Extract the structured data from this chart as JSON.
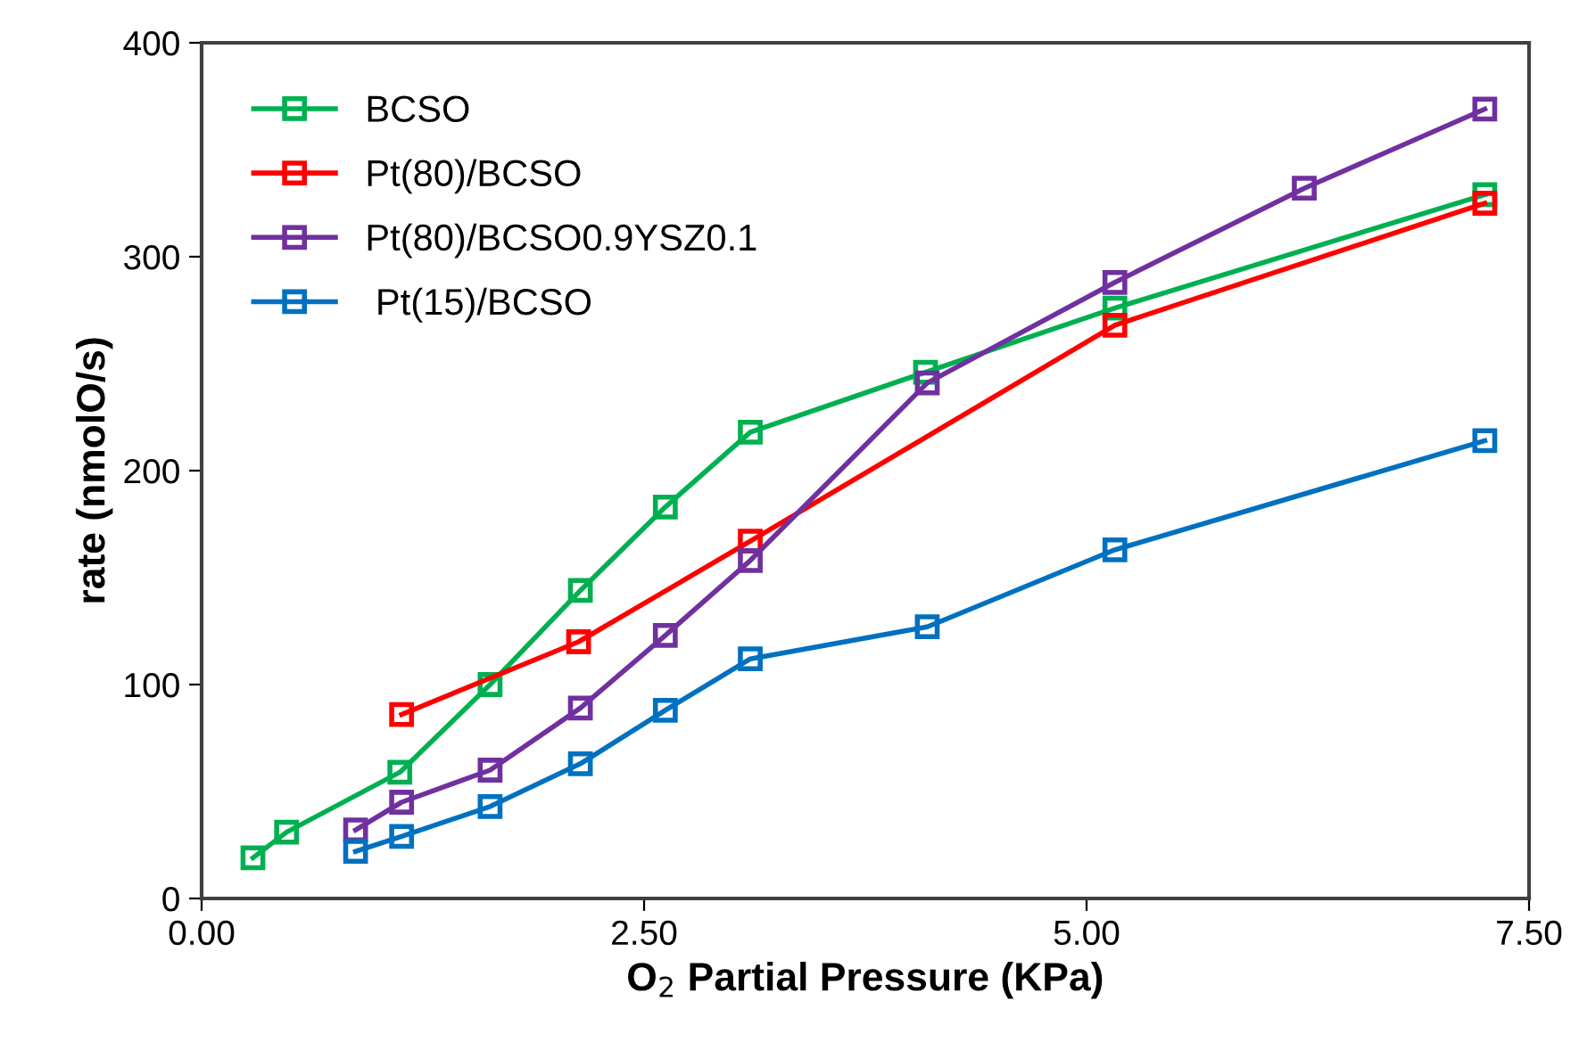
{
  "chart_data": {
    "type": "line",
    "xlabel": "O$_{2}$ Partial Pressure (KPa)",
    "ylabel": "rate (nmolO/s)",
    "xlim": [
      0,
      7.5
    ],
    "xticks": [
      {
        "value": 0,
        "label": "0.00"
      },
      {
        "value": 2.5,
        "label": "2.50"
      },
      {
        "value": 5,
        "label": "5.00"
      },
      {
        "value": 7.5,
        "label": "7.50"
      }
    ],
    "ylim": [
      0,
      400
    ],
    "yticks": [
      0,
      100,
      200,
      300,
      400
    ],
    "grid": false,
    "legend": "top left",
    "marker": "square",
    "line_style": "solid",
    "series": [
      {
        "name": "BCSO",
        "color": "#00b050",
        "x": [
          0.29,
          0.48,
          1.12,
          1.63,
          2.14,
          2.62,
          3.1,
          4.09,
          5.16,
          7.25
        ],
        "values": [
          19,
          31,
          59,
          100,
          144,
          183,
          218,
          246,
          276,
          329
        ]
      },
      {
        "name": "Pt(80)/BCSO",
        "color": "#ff0000",
        "x": [
          1.13,
          2.13,
          3.1,
          5.16,
          7.25
        ],
        "values": [
          86,
          120,
          167,
          268,
          325
        ]
      },
      {
        "name": "Pt(80)/BCSO0.9YSZ0.1",
        "color": "#7030a0",
        "x": [
          0.87,
          1.13,
          1.63,
          2.14,
          2.62,
          3.1,
          4.1,
          5.16,
          6.23,
          7.25
        ],
        "values": [
          32,
          45,
          60,
          89,
          123,
          158,
          241,
          288,
          332,
          369
        ]
      },
      {
        "name": " Pt(15)/BCSO",
        "color": "#0070c0",
        "x": [
          0.87,
          1.13,
          1.63,
          2.14,
          2.62,
          3.1,
          4.1,
          5.16,
          7.25
        ],
        "values": [
          22,
          29,
          43,
          63,
          88,
          112,
          127,
          163,
          214
        ]
      }
    ]
  }
}
